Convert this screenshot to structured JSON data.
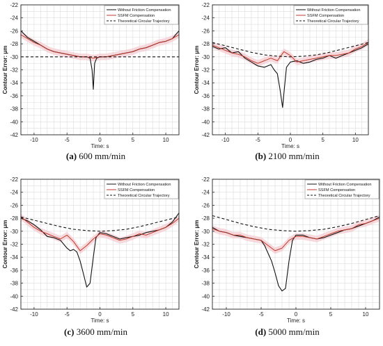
{
  "colors": {
    "without": "#111111",
    "ssfm": "#c0392b",
    "ssfm_band": "#f4c9cf",
    "theory": "#111111",
    "grid": "#dcdcdc"
  },
  "captions": [
    {
      "letter": "(a)",
      "text": "600 mm/min"
    },
    {
      "letter": "(b)",
      "text": "2100 mm/min"
    },
    {
      "letter": "(c)",
      "text": "3600 mm/min"
    },
    {
      "letter": "(d)",
      "text": "5000 mm/min"
    }
  ],
  "chart_data": [
    {
      "type": "line",
      "title": "",
      "xlabel": "Time: s",
      "ylabel": "Contour Error: μm",
      "xlim": [
        -12,
        12
      ],
      "ylim": [
        -42,
        -22
      ],
      "xticks": [
        -10,
        -5,
        0,
        5,
        10
      ],
      "yticks": [
        -22,
        -24,
        -26,
        -28,
        -30,
        -32,
        -34,
        -36,
        -38,
        -40,
        -42
      ],
      "grid": true,
      "legend_position": "top-right",
      "series": [
        {
          "name": "Without Friction Compensation",
          "x": [
            -12,
            -11,
            -10,
            -9,
            -8,
            -7,
            -6,
            -5,
            -4,
            -3,
            -2,
            -1.5,
            -1.2,
            -1,
            -0.8,
            -0.5,
            0,
            1,
            2,
            3,
            4,
            5,
            6,
            7,
            8,
            9,
            10,
            11,
            12
          ],
          "y": [
            -26,
            -27,
            -27.6,
            -28.2,
            -28.8,
            -29.2,
            -29.4,
            -29.6,
            -29.8,
            -30,
            -30,
            -30.2,
            -32,
            -35,
            -31,
            -30.2,
            -30,
            -30,
            -29.8,
            -29.6,
            -29.4,
            -29.2,
            -28.8,
            -28.6,
            -28.2,
            -27.8,
            -27.6,
            -27.2,
            -26
          ]
        },
        {
          "name": "SSFM Compensation",
          "x": [
            -12,
            -11,
            -10,
            -9,
            -8,
            -7,
            -6,
            -5,
            -4,
            -3,
            -2,
            -1,
            0,
            1,
            2,
            3,
            4,
            5,
            6,
            7,
            8,
            9,
            10,
            11,
            12
          ],
          "y": [
            -26.6,
            -27.2,
            -27.8,
            -28.2,
            -28.8,
            -29.2,
            -29.4,
            -29.6,
            -29.8,
            -30,
            -30,
            -30.2,
            -30,
            -30,
            -29.8,
            -29.6,
            -29.4,
            -29.2,
            -28.8,
            -28.6,
            -28.2,
            -27.8,
            -27.6,
            -27.2,
            -26.6
          ]
        },
        {
          "name": "Theoretical Circular Trajectory",
          "x": [
            -12,
            -10,
            -8,
            -6,
            -4,
            -2,
            0,
            2,
            4,
            6,
            8,
            10,
            12
          ],
          "y": [
            -30,
            -30,
            -30,
            -30,
            -30,
            -30,
            -30,
            -30,
            -30,
            -30,
            -30,
            -30,
            -30
          ]
        }
      ]
    },
    {
      "type": "line",
      "title": "",
      "xlabel": "Time: s",
      "ylabel": "Contour Error: μm",
      "xlim": [
        -12,
        12
      ],
      "ylim": [
        -42,
        -22
      ],
      "xticks": [
        -10,
        -5,
        0,
        5,
        10
      ],
      "yticks": [
        -22,
        -24,
        -26,
        -28,
        -30,
        -32,
        -34,
        -36,
        -38,
        -40,
        -42
      ],
      "grid": true,
      "legend_position": "top-right",
      "series": [
        {
          "name": "Without Friction Compensation",
          "x": [
            -12,
            -11,
            -10,
            -9,
            -8,
            -7,
            -6,
            -5,
            -4,
            -3,
            -2.5,
            -2,
            -1.6,
            -1.2,
            -1,
            -0.6,
            0,
            1,
            2,
            3,
            4,
            5,
            6,
            7,
            8,
            9,
            10,
            11,
            12
          ],
          "y": [
            -28.4,
            -28.8,
            -28.6,
            -29.4,
            -29.2,
            -30.2,
            -30.8,
            -31.4,
            -31.6,
            -31.2,
            -32,
            -32.6,
            -35,
            -37.8,
            -35.6,
            -31.6,
            -30.8,
            -30.6,
            -31,
            -30.8,
            -30.4,
            -30.2,
            -29.8,
            -30.2,
            -29.8,
            -29.4,
            -29,
            -28.6,
            -28
          ]
        },
        {
          "name": "SSFM Compensation",
          "x": [
            -12,
            -11,
            -10,
            -9,
            -8,
            -7,
            -6,
            -5,
            -4,
            -3,
            -2,
            -1,
            0,
            1,
            2,
            3,
            4,
            5,
            6,
            7,
            8,
            9,
            10,
            11,
            12
          ],
          "y": [
            -28.2,
            -28.6,
            -29,
            -29.4,
            -29.6,
            -30,
            -30.6,
            -31,
            -30.6,
            -30.2,
            -30.6,
            -29.2,
            -29.8,
            -30.8,
            -30.6,
            -30.4,
            -30.2,
            -30,
            -29.8,
            -29.8,
            -29.6,
            -29.4,
            -28.8,
            -28.4,
            -27.8
          ]
        },
        {
          "name": "Theoretical Circular Trajectory",
          "x": [
            -12,
            -10,
            -8,
            -6,
            -4,
            -2,
            0,
            2,
            4,
            6,
            8,
            10,
            12
          ],
          "y": [
            -27.8,
            -28.3,
            -28.8,
            -29.3,
            -29.7,
            -29.9,
            -30,
            -29.9,
            -29.7,
            -29.3,
            -28.8,
            -28.3,
            -27.8
          ]
        }
      ]
    },
    {
      "type": "line",
      "title": "",
      "xlabel": "Time: s",
      "ylabel": "Contour Error: μm",
      "xlim": [
        -12,
        12
      ],
      "ylim": [
        -42,
        -22
      ],
      "xticks": [
        -10,
        -5,
        0,
        5,
        10
      ],
      "yticks": [
        -22,
        -24,
        -26,
        -28,
        -30,
        -32,
        -34,
        -36,
        -38,
        -40,
        -42
      ],
      "grid": true,
      "legend_position": "top-right",
      "series": [
        {
          "name": "Without Friction Compensation",
          "x": [
            -12,
            -11,
            -10,
            -9,
            -8,
            -7,
            -6,
            -5,
            -4.5,
            -4,
            -3.5,
            -3,
            -2.5,
            -2,
            -1.5,
            -1,
            -0.6,
            0,
            1,
            2,
            3,
            4,
            5,
            6,
            7,
            8,
            9,
            10,
            11,
            12
          ],
          "y": [
            -28,
            -28.4,
            -29,
            -29.8,
            -30.8,
            -31,
            -31.4,
            -32.6,
            -33,
            -32.8,
            -33.2,
            -34.6,
            -36.6,
            -38.6,
            -38,
            -34,
            -31,
            -30.2,
            -30.4,
            -30.8,
            -31.2,
            -31,
            -30.8,
            -30.6,
            -30.2,
            -30,
            -29.8,
            -29.4,
            -28.6,
            -27.2
          ]
        },
        {
          "name": "SSFM Compensation",
          "x": [
            -12,
            -11,
            -10,
            -9,
            -8,
            -7,
            -6,
            -5,
            -4,
            -3,
            -2,
            -1,
            0,
            1,
            2,
            3,
            4,
            5,
            6,
            7,
            8,
            9,
            10,
            11,
            12
          ],
          "y": [
            -27.8,
            -28.6,
            -29.4,
            -30,
            -30.4,
            -30.8,
            -31.2,
            -30.6,
            -31.6,
            -33,
            -32.2,
            -31.2,
            -30.4,
            -30.6,
            -31,
            -31.4,
            -31.2,
            -30.8,
            -30.4,
            -30.6,
            -30.2,
            -29.8,
            -29.4,
            -28.8,
            -28
          ]
        },
        {
          "name": "Theoretical Circular Trajectory",
          "x": [
            -12,
            -10,
            -8,
            -6,
            -4,
            -2,
            0,
            2,
            4,
            6,
            8,
            10,
            12
          ],
          "y": [
            -27.8,
            -28.3,
            -28.8,
            -29.3,
            -29.7,
            -29.9,
            -30,
            -29.9,
            -29.7,
            -29.3,
            -28.8,
            -28.3,
            -27.8
          ]
        }
      ]
    },
    {
      "type": "line",
      "title": "",
      "xlabel": "Time: s",
      "ylabel": "Contour Error: μm",
      "xlim": [
        -12,
        12
      ],
      "ylim": [
        -42,
        -22
      ],
      "xticks": [
        -10,
        -5,
        0,
        5,
        10
      ],
      "yticks": [
        -22,
        -24,
        -26,
        -28,
        -30,
        -32,
        -34,
        -36,
        -38,
        -40,
        -42
      ],
      "grid": true,
      "legend_position": "top-right",
      "series": [
        {
          "name": "Without Friction Compensation",
          "x": [
            -12,
            -11,
            -10,
            -9,
            -8,
            -7,
            -6,
            -5,
            -4.5,
            -4,
            -3.5,
            -3,
            -2.5,
            -2,
            -1.5,
            -1,
            -0.5,
            0,
            1,
            2,
            3,
            4,
            5,
            6,
            7,
            8,
            9,
            10,
            11,
            12
          ],
          "y": [
            -29.4,
            -30,
            -30.2,
            -30.6,
            -30.8,
            -31,
            -31.2,
            -31.4,
            -32.2,
            -33.4,
            -34.6,
            -36.4,
            -38.4,
            -39.2,
            -38.8,
            -34.6,
            -31.4,
            -30.6,
            -30.6,
            -31,
            -31.2,
            -31,
            -30.6,
            -30.2,
            -29.8,
            -29.6,
            -29.2,
            -28.8,
            -28.4,
            -27.8
          ]
        },
        {
          "name": "SSFM Compensation",
          "x": [
            -12,
            -11,
            -10,
            -9,
            -8,
            -7,
            -6,
            -5,
            -4,
            -3,
            -2,
            -1,
            0,
            1,
            2,
            3,
            4,
            5,
            6,
            7,
            8,
            9,
            10,
            11,
            12
          ],
          "y": [
            -29.6,
            -30,
            -30.2,
            -30.6,
            -30.6,
            -31,
            -31.2,
            -31.4,
            -32.2,
            -33,
            -32.6,
            -31.4,
            -30.8,
            -30.8,
            -31,
            -31.2,
            -30.8,
            -30.4,
            -30,
            -29.8,
            -29.6,
            -29,
            -28.8,
            -28.4,
            -28
          ]
        },
        {
          "name": "Theoretical Circular Trajectory",
          "x": [
            -12,
            -10,
            -8,
            -6,
            -4,
            -2,
            0,
            2,
            4,
            6,
            8,
            10,
            12
          ],
          "y": [
            -27.6,
            -28.2,
            -28.8,
            -29.3,
            -29.7,
            -29.9,
            -30,
            -29.9,
            -29.7,
            -29.3,
            -28.8,
            -28.2,
            -27.6
          ]
        }
      ]
    }
  ]
}
